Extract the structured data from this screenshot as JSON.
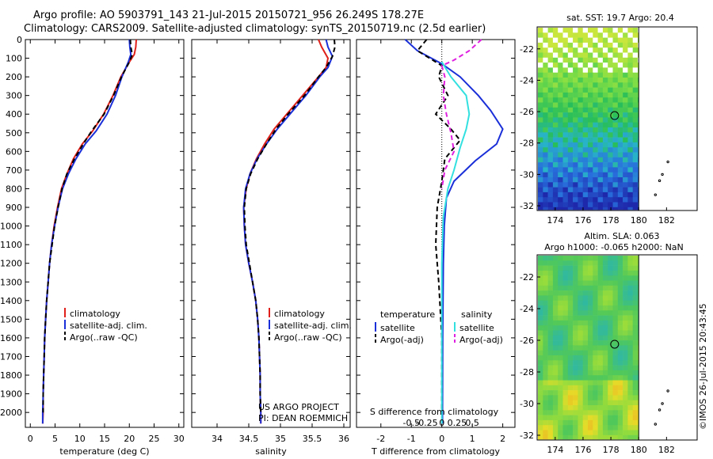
{
  "header": {
    "line1": "Argo profile: AO 5903791_143 21-Jul-2015 20150721_956 26.249S 178.27E",
    "line2": "Climatology: CARS2009. Satellite-adjusted climatology: synTS_20150719.nc (2.5d earlier)"
  },
  "colors": {
    "climatology": "#e0201a",
    "satellite_temp": "#1a2fd8",
    "argo": "#000000",
    "satellite_sal": "#33e0e0",
    "argo_sal_adj": "#e020e0"
  },
  "chart_data": [
    {
      "type": "line",
      "panel": "temperature",
      "xlabel": "temperature (deg C)",
      "ylabel": "",
      "xlim": [
        -1,
        31
      ],
      "ylim": [
        2080,
        0
      ],
      "xticks": [
        "0",
        "5",
        "10",
        "15",
        "20",
        "25",
        "30"
      ],
      "yticks": [
        "0",
        "100",
        "200",
        "300",
        "400",
        "500",
        "600",
        "700",
        "800",
        "900",
        "1000",
        "1100",
        "1200",
        "1300",
        "1400",
        "1500",
        "1600",
        "1700",
        "1800",
        "1900",
        "2000"
      ],
      "legend": [
        "climatology",
        "satellite-adj. clim.",
        "Argo(..raw -QC)"
      ],
      "series": [
        {
          "name": "climatology",
          "color": "#e0201a",
          "dash": false,
          "points": [
            [
              21.4,
              0
            ],
            [
              21.3,
              40
            ],
            [
              21.0,
              80
            ],
            [
              20.0,
              120
            ],
            [
              18.3,
              200
            ],
            [
              16.7,
              300
            ],
            [
              14.8,
              400
            ],
            [
              12.6,
              490
            ],
            [
              10.5,
              560
            ],
            [
              8.7,
              640
            ],
            [
              7.4,
              720
            ],
            [
              6.3,
              800
            ],
            [
              5.5,
              900
            ],
            [
              4.8,
              1000
            ],
            [
              4.3,
              1100
            ],
            [
              3.9,
              1200
            ],
            [
              3.6,
              1300
            ],
            [
              3.3,
              1400
            ],
            [
              3.1,
              1500
            ],
            [
              2.9,
              1600
            ],
            [
              2.8,
              1700
            ],
            [
              2.7,
              1800
            ],
            [
              2.6,
              1900
            ],
            [
              2.6,
              2000
            ],
            [
              2.5,
              2060
            ]
          ]
        },
        {
          "name": "satellite-adj. clim.",
          "color": "#1a2fd8",
          "dash": false,
          "points": [
            [
              20.0,
              0
            ],
            [
              20.1,
              40
            ],
            [
              20.3,
              80
            ],
            [
              19.8,
              120
            ],
            [
              18.5,
              200
            ],
            [
              17.2,
              300
            ],
            [
              15.5,
              400
            ],
            [
              13.3,
              490
            ],
            [
              11.1,
              560
            ],
            [
              9.2,
              640
            ],
            [
              7.7,
              720
            ],
            [
              6.5,
              800
            ],
            [
              5.6,
              900
            ],
            [
              4.9,
              1000
            ],
            [
              4.3,
              1100
            ],
            [
              3.9,
              1200
            ],
            [
              3.6,
              1300
            ],
            [
              3.3,
              1400
            ],
            [
              3.1,
              1500
            ],
            [
              2.9,
              1600
            ],
            [
              2.8,
              1700
            ],
            [
              2.7,
              1800
            ],
            [
              2.6,
              1900
            ],
            [
              2.5,
              2000
            ],
            [
              2.5,
              2060
            ]
          ]
        },
        {
          "name": "Argo(..raw -QC)",
          "color": "#000000",
          "dash": true,
          "points": [
            [
              20.2,
              0
            ],
            [
              20.3,
              40
            ],
            [
              20.6,
              80
            ],
            [
              20.0,
              120
            ],
            [
              18.4,
              200
            ],
            [
              16.8,
              300
            ],
            [
              14.9,
              400
            ],
            [
              12.4,
              490
            ],
            [
              10.7,
              560
            ],
            [
              8.9,
              640
            ],
            [
              7.4,
              720
            ],
            [
              6.4,
              800
            ],
            [
              5.6,
              900
            ],
            [
              4.9,
              1000
            ],
            [
              4.4,
              1100
            ],
            [
              3.9,
              1200
            ],
            [
              3.6,
              1300
            ],
            [
              3.3,
              1400
            ],
            [
              3.1,
              1500
            ],
            [
              2.9,
              1600
            ],
            [
              2.8,
              1700
            ],
            [
              2.7,
              1800
            ],
            [
              2.6,
              1900
            ],
            [
              2.6,
              2000
            ]
          ]
        }
      ]
    },
    {
      "type": "line",
      "panel": "salinity",
      "xlabel": "salinity",
      "xlim": [
        33.6,
        36.1
      ],
      "ylim": [
        2080,
        0
      ],
      "xticks": [
        "34",
        "34.5",
        "35",
        "35.5",
        "36"
      ],
      "legend": [
        "climatology",
        "satellite-adj. clim.",
        "Argo(..raw -QC)"
      ],
      "annotation": [
        "US ARGO PROJECT",
        "PI: DEAN ROEMMICH"
      ],
      "series": [
        {
          "name": "climatology",
          "color": "#e0201a",
          "dash": false,
          "points": [
            [
              35.6,
              0
            ],
            [
              35.65,
              40
            ],
            [
              35.75,
              100
            ],
            [
              35.72,
              150
            ],
            [
              35.6,
              200
            ],
            [
              35.35,
              300
            ],
            [
              35.1,
              400
            ],
            [
              34.9,
              480
            ],
            [
              34.75,
              560
            ],
            [
              34.62,
              640
            ],
            [
              34.52,
              720
            ],
            [
              34.46,
              800
            ],
            [
              34.42,
              900
            ],
            [
              34.43,
              1000
            ],
            [
              34.45,
              1100
            ],
            [
              34.5,
              1200
            ],
            [
              34.56,
              1300
            ],
            [
              34.61,
              1400
            ],
            [
              34.64,
              1500
            ],
            [
              34.66,
              1600
            ],
            [
              34.67,
              1700
            ],
            [
              34.68,
              1800
            ],
            [
              34.68,
              1900
            ],
            [
              34.69,
              2000
            ],
            [
              34.69,
              2060
            ]
          ]
        },
        {
          "name": "satellite-adj. clim.",
          "color": "#1a2fd8",
          "dash": false,
          "points": [
            [
              35.72,
              0
            ],
            [
              35.75,
              40
            ],
            [
              35.82,
              90
            ],
            [
              35.75,
              150
            ],
            [
              35.62,
              200
            ],
            [
              35.4,
              300
            ],
            [
              35.15,
              400
            ],
            [
              34.95,
              480
            ],
            [
              34.78,
              560
            ],
            [
              34.63,
              640
            ],
            [
              34.52,
              720
            ],
            [
              34.45,
              800
            ],
            [
              34.42,
              900
            ],
            [
              34.43,
              1000
            ],
            [
              34.45,
              1100
            ],
            [
              34.5,
              1200
            ],
            [
              34.56,
              1300
            ],
            [
              34.61,
              1400
            ],
            [
              34.64,
              1500
            ],
            [
              34.66,
              1600
            ],
            [
              34.67,
              1700
            ],
            [
              34.68,
              1800
            ],
            [
              34.68,
              1900
            ],
            [
              34.69,
              2000
            ],
            [
              34.69,
              2060
            ]
          ]
        },
        {
          "name": "Argo(..raw -QC)",
          "color": "#000000",
          "dash": true,
          "points": [
            [
              35.85,
              0
            ],
            [
              35.86,
              40
            ],
            [
              35.82,
              90
            ],
            [
              35.72,
              150
            ],
            [
              35.6,
              200
            ],
            [
              35.38,
              300
            ],
            [
              35.12,
              400
            ],
            [
              34.93,
              480
            ],
            [
              34.78,
              560
            ],
            [
              34.64,
              640
            ],
            [
              34.53,
              720
            ],
            [
              34.46,
              800
            ],
            [
              34.43,
              900
            ],
            [
              34.44,
              1000
            ],
            [
              34.46,
              1100
            ],
            [
              34.51,
              1200
            ],
            [
              34.56,
              1300
            ],
            [
              34.61,
              1400
            ],
            [
              34.64,
              1500
            ],
            [
              34.66,
              1600
            ],
            [
              34.67,
              1700
            ],
            [
              34.68,
              1800
            ],
            [
              34.68,
              1900
            ],
            [
              34.69,
              2000
            ]
          ]
        }
      ]
    },
    {
      "type": "line",
      "panel": "difference",
      "xlabel": "T difference from climatology",
      "top_label": "S difference from climatology",
      "xlim": [
        -2.8,
        2.4
      ],
      "ylim": [
        2080,
        0
      ],
      "xticks": [
        "-2",
        "-1",
        "0",
        "1",
        "2"
      ],
      "s_ticks": [
        "-0.5",
        "-0.25",
        "0",
        "0.25",
        "0.5"
      ],
      "legend_headers": [
        "temperature",
        "salinity"
      ],
      "legend": [
        "satellite",
        "Argo(-adj)",
        "satellite",
        "Argo(-adj)"
      ],
      "series": [
        {
          "name": "satellite",
          "group": "temperature",
          "color": "#1a2fd8",
          "dash": false,
          "points": [
            [
              -1.2,
              0
            ],
            [
              -0.8,
              60
            ],
            [
              0.0,
              130
            ],
            [
              0.6,
              200
            ],
            [
              1.2,
              300
            ],
            [
              1.6,
              380
            ],
            [
              2.0,
              480
            ],
            [
              1.8,
              560
            ],
            [
              1.1,
              650
            ],
            [
              0.4,
              760
            ],
            [
              0.15,
              850
            ],
            [
              0.08,
              1000
            ],
            [
              0.05,
              1200
            ],
            [
              0.03,
              1600
            ],
            [
              0.02,
              2060
            ]
          ]
        },
        {
          "name": "Argo(-adj)",
          "group": "temperature",
          "color": "#000000",
          "dash": true,
          "points": [
            [
              -0.5,
              0
            ],
            [
              -0.8,
              60
            ],
            [
              -0.3,
              110
            ],
            [
              0.0,
              140
            ],
            [
              -0.1,
              200
            ],
            [
              0.2,
              300
            ],
            [
              -0.2,
              400
            ],
            [
              0.3,
              480
            ],
            [
              0.6,
              540
            ],
            [
              0.1,
              640
            ],
            [
              0.0,
              760
            ],
            [
              -0.15,
              900
            ],
            [
              -0.2,
              1100
            ],
            [
              -0.1,
              1300
            ],
            [
              0.0,
              1600
            ],
            [
              0.0,
              2000
            ]
          ]
        },
        {
          "name": "satellite",
          "group": "salinity",
          "color": "#33e0e0",
          "dash": false,
          "points": [
            [
              0.0,
              120
            ],
            [
              0.3,
              200
            ],
            [
              0.8,
              300
            ],
            [
              0.9,
              400
            ],
            [
              0.8,
              480
            ],
            [
              0.6,
              580
            ],
            [
              0.4,
              700
            ],
            [
              0.2,
              800
            ],
            [
              0.05,
              950
            ],
            [
              0.0,
              1200
            ],
            [
              0.0,
              2060
            ]
          ]
        },
        {
          "name": "Argo(-adj)",
          "group": "salinity",
          "color": "#e020e0",
          "dash": true,
          "points": [
            [
              1.3,
              0
            ],
            [
              0.9,
              60
            ],
            [
              0.4,
              110
            ],
            [
              0.0,
              140
            ],
            [
              0.1,
              200
            ],
            [
              0.05,
              300
            ],
            [
              0.15,
              400
            ],
            [
              0.3,
              500
            ],
            [
              0.4,
              600
            ],
            [
              0.1,
              700
            ],
            [
              0.0,
              800
            ]
          ]
        }
      ]
    }
  ],
  "maps": {
    "sst": {
      "title": "sat. SST: 19.7 Argo: 20.4",
      "xticks": [
        "174",
        "176",
        "178",
        "180",
        "182"
      ],
      "yticks": [
        "-22",
        "-24",
        "-26",
        "-28",
        "-30",
        "-32"
      ]
    },
    "sla": {
      "title_line1": "Altim. SLA: 0.063",
      "title_line2": "Argo h1000: -0.065 h2000: NaN",
      "xticks": [
        "174",
        "176",
        "178",
        "180",
        "182"
      ],
      "yticks": [
        "-22",
        "-24",
        "-26",
        "-28",
        "-30",
        "-32"
      ]
    }
  },
  "credit": "©IMOS 26-Jul-2015 20:43:45"
}
